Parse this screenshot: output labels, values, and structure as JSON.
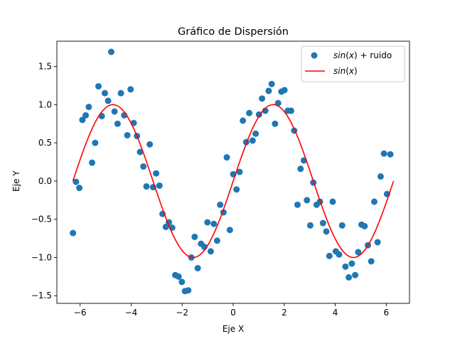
{
  "chart_data": {
    "type": "scatter",
    "title": "Gráfico de Dispersión",
    "xlabel": "Eje X",
    "ylabel": "Eje Y",
    "xlim": [
      -6.91,
      6.91
    ],
    "ylim": [
      -1.6,
      1.83
    ],
    "xticks": [
      -6,
      -4,
      -2,
      0,
      2,
      4,
      6
    ],
    "yticks": [
      -1.5,
      -1.0,
      -0.5,
      0.0,
      0.5,
      1.0,
      1.5
    ],
    "grid": false,
    "legend_position": "upper-right",
    "series": [
      {
        "name": "sin(x) + ruido",
        "legend_label": {
          "func": "sin",
          "var": "x",
          "rest": " + ruido"
        },
        "kind": "scatter",
        "color": "#1f77b4",
        "points": [
          [
            -6.28,
            -0.68
          ],
          [
            -6.16,
            -0.01
          ],
          [
            -6.03,
            -0.09
          ],
          [
            -5.91,
            0.8
          ],
          [
            -5.78,
            0.86
          ],
          [
            -5.66,
            0.97
          ],
          [
            -5.53,
            0.24
          ],
          [
            -5.41,
            0.5
          ],
          [
            -5.28,
            1.24
          ],
          [
            -5.15,
            0.85
          ],
          [
            -5.03,
            1.15
          ],
          [
            -4.9,
            1.05
          ],
          [
            -4.78,
            1.69
          ],
          [
            -4.65,
            0.91
          ],
          [
            -4.53,
            0.75
          ],
          [
            -4.4,
            1.15
          ],
          [
            -4.27,
            0.86
          ],
          [
            -4.15,
            0.6
          ],
          [
            -4.02,
            1.2
          ],
          [
            -3.9,
            0.76
          ],
          [
            -3.77,
            0.59
          ],
          [
            -3.65,
            0.38
          ],
          [
            -3.52,
            0.19
          ],
          [
            -3.4,
            -0.07
          ],
          [
            -3.27,
            0.48
          ],
          [
            -3.14,
            -0.08
          ],
          [
            -3.02,
            0.1
          ],
          [
            -2.89,
            -0.06
          ],
          [
            -2.77,
            -0.43
          ],
          [
            -2.64,
            -0.6
          ],
          [
            -2.52,
            -0.54
          ],
          [
            -2.39,
            -0.61
          ],
          [
            -2.27,
            -1.23
          ],
          [
            -2.14,
            -1.25
          ],
          [
            -2.01,
            -1.32
          ],
          [
            -1.89,
            -1.44
          ],
          [
            -1.76,
            -1.43
          ],
          [
            -1.64,
            -1.0
          ],
          [
            -1.51,
            -0.73
          ],
          [
            -1.39,
            -1.14
          ],
          [
            -1.26,
            -0.82
          ],
          [
            -1.13,
            -0.86
          ],
          [
            -1.01,
            -0.54
          ],
          [
            -0.88,
            -0.92
          ],
          [
            -0.76,
            -0.56
          ],
          [
            -0.63,
            -0.78
          ],
          [
            -0.51,
            -0.31
          ],
          [
            -0.38,
            -0.41
          ],
          [
            -0.25,
            0.31
          ],
          [
            -0.13,
            -0.64
          ],
          [
            0.0,
            0.09
          ],
          [
            0.13,
            -0.11
          ],
          [
            0.25,
            0.12
          ],
          [
            0.38,
            0.79
          ],
          [
            0.51,
            0.51
          ],
          [
            0.63,
            0.89
          ],
          [
            0.76,
            0.53
          ],
          [
            0.88,
            0.62
          ],
          [
            1.01,
            0.87
          ],
          [
            1.13,
            1.08
          ],
          [
            1.26,
            0.92
          ],
          [
            1.39,
            1.18
          ],
          [
            1.51,
            1.27
          ],
          [
            1.64,
            0.75
          ],
          [
            1.76,
            1.02
          ],
          [
            1.89,
            1.17
          ],
          [
            2.01,
            1.19
          ],
          [
            2.14,
            0.92
          ],
          [
            2.27,
            0.92
          ],
          [
            2.39,
            0.66
          ],
          [
            2.52,
            -0.31
          ],
          [
            2.64,
            0.16
          ],
          [
            2.77,
            0.27
          ],
          [
            2.89,
            -0.25
          ],
          [
            3.02,
            -0.58
          ],
          [
            3.14,
            -0.02
          ],
          [
            3.27,
            -0.31
          ],
          [
            3.4,
            -0.27
          ],
          [
            3.52,
            -0.55
          ],
          [
            3.65,
            -0.66
          ],
          [
            3.77,
            -0.98
          ],
          [
            3.9,
            -0.27
          ],
          [
            4.02,
            -0.92
          ],
          [
            4.15,
            -0.96
          ],
          [
            4.27,
            -0.58
          ],
          [
            4.4,
            -1.12
          ],
          [
            4.53,
            -1.26
          ],
          [
            4.65,
            -1.08
          ],
          [
            4.78,
            -1.23
          ],
          [
            4.9,
            -0.93
          ],
          [
            5.03,
            -0.57
          ],
          [
            5.15,
            -0.59
          ],
          [
            5.28,
            -0.84
          ],
          [
            5.41,
            -1.05
          ],
          [
            5.53,
            -0.27
          ],
          [
            5.66,
            -0.8
          ],
          [
            5.78,
            0.06
          ],
          [
            5.91,
            0.36
          ],
          [
            6.03,
            -0.17
          ],
          [
            6.16,
            0.35
          ]
        ]
      },
      {
        "name": "sin(x)",
        "legend_label": {
          "func": "sin",
          "var": "x",
          "rest": ""
        },
        "kind": "line",
        "color": "#ff0000",
        "function": "sin",
        "x_range": [
          -6.2832,
          6.2832
        ]
      }
    ]
  }
}
